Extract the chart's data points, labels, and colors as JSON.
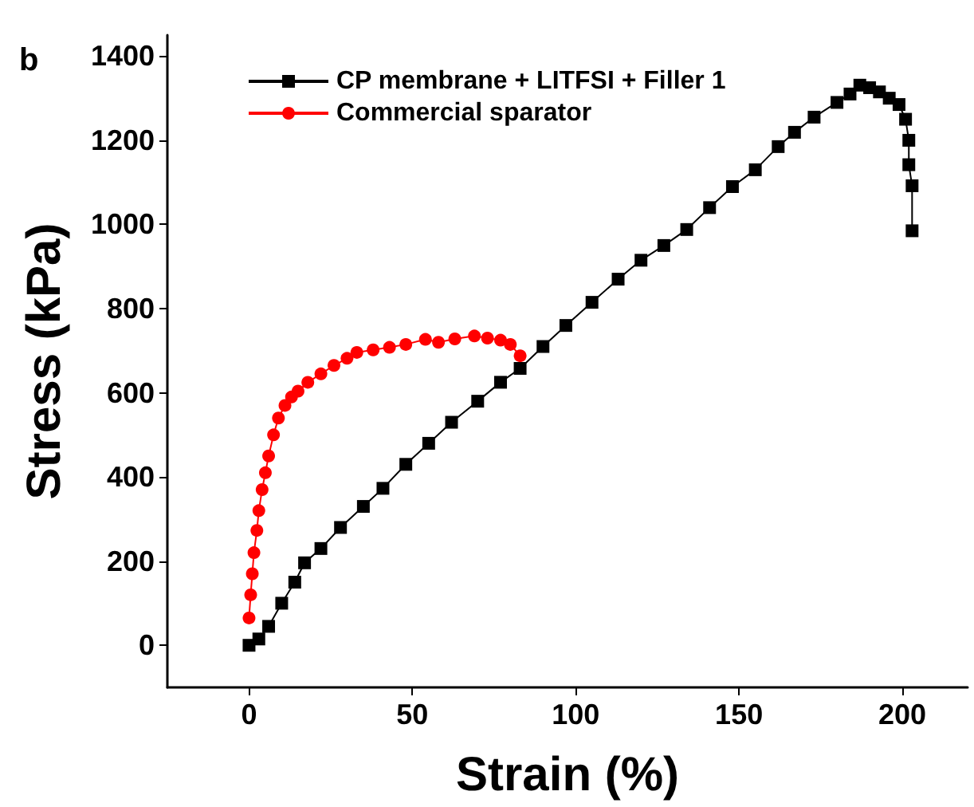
{
  "chart_data": {
    "type": "line",
    "xlabel": "Strain (%)",
    "ylabel": "Stress (kPa)",
    "annotations": [
      "b"
    ],
    "xlim": [
      -25,
      220
    ],
    "xticks": [
      0,
      50,
      100,
      150,
      200
    ],
    "ylim": [
      -100,
      1450
    ],
    "yticks": [
      0,
      200,
      400,
      600,
      800,
      1000,
      1200,
      1400
    ],
    "grid": false,
    "legend": "top left",
    "series": [
      {
        "name": "CP membrane + LITFSI + Filler 1",
        "color": "#000000",
        "marker": "square",
        "x": [
          0,
          3,
          6,
          10,
          14,
          17,
          22,
          28,
          35,
          41,
          48,
          55,
          62,
          70,
          77,
          83,
          90,
          97,
          105,
          113,
          120,
          127,
          134,
          141,
          148,
          155,
          162,
          167,
          173,
          180,
          184,
          187,
          190,
          193,
          196,
          199,
          201,
          202,
          202,
          203,
          203
        ],
        "values": [
          0,
          15,
          45,
          100,
          150,
          196,
          230,
          280,
          330,
          373,
          430,
          480,
          530,
          580,
          625,
          658,
          710,
          760,
          815,
          870,
          915,
          950,
          988,
          1040,
          1090,
          1130,
          1185,
          1219,
          1255,
          1290,
          1310,
          1331,
          1325,
          1315,
          1300,
          1285,
          1250,
          1200,
          1142,
          1092,
          985
        ]
      },
      {
        "name": "Commercial sparator",
        "color": "#ff0000",
        "marker": "circle",
        "x": [
          0,
          0.5,
          1,
          1.5,
          2.4,
          3,
          4,
          5,
          6,
          7.5,
          9,
          11,
          13,
          15,
          18,
          22,
          26,
          30,
          33,
          38,
          43,
          48,
          54,
          58,
          63,
          69,
          73,
          77,
          80,
          83
        ],
        "values": [
          65,
          120,
          170,
          220,
          273,
          320,
          370,
          410,
          450,
          500,
          540,
          570,
          590,
          604,
          625,
          645,
          665,
          682,
          696,
          702,
          708,
          715,
          727,
          720,
          728,
          735,
          730,
          725,
          715,
          688
        ]
      }
    ]
  }
}
